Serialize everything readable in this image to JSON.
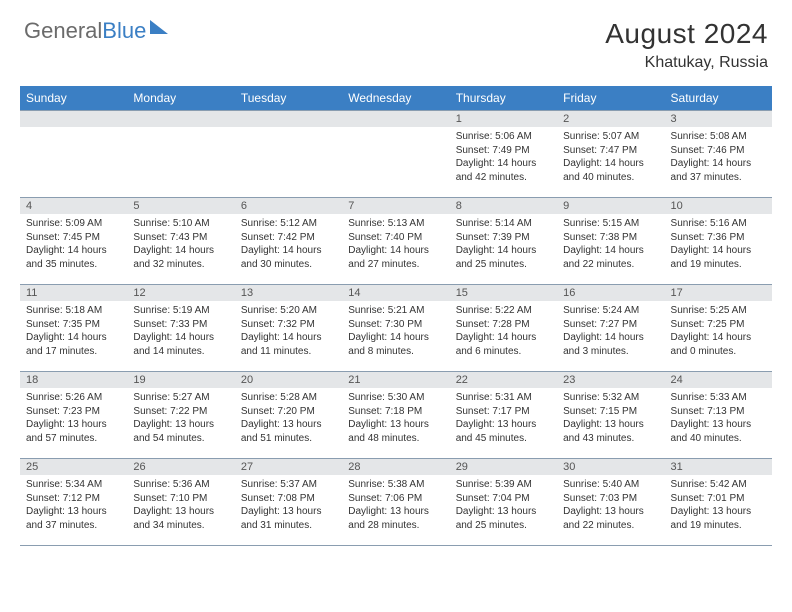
{
  "logo": {
    "text1": "General",
    "text2": "Blue"
  },
  "title": "August 2024",
  "location": "Khatukay, Russia",
  "colors": {
    "header_bg": "#3b7fc4",
    "header_text": "#ffffff",
    "daynum_bg": "#e4e6e8",
    "border": "#8a9db0",
    "text": "#333333",
    "logo_gray": "#6b6b6b"
  },
  "dayNames": [
    "Sunday",
    "Monday",
    "Tuesday",
    "Wednesday",
    "Thursday",
    "Friday",
    "Saturday"
  ],
  "weeks": [
    [
      {
        "n": "",
        "sr": "",
        "ss": "",
        "dl": ""
      },
      {
        "n": "",
        "sr": "",
        "ss": "",
        "dl": ""
      },
      {
        "n": "",
        "sr": "",
        "ss": "",
        "dl": ""
      },
      {
        "n": "",
        "sr": "",
        "ss": "",
        "dl": ""
      },
      {
        "n": "1",
        "sr": "Sunrise: 5:06 AM",
        "ss": "Sunset: 7:49 PM",
        "dl": "Daylight: 14 hours and 42 minutes."
      },
      {
        "n": "2",
        "sr": "Sunrise: 5:07 AM",
        "ss": "Sunset: 7:47 PM",
        "dl": "Daylight: 14 hours and 40 minutes."
      },
      {
        "n": "3",
        "sr": "Sunrise: 5:08 AM",
        "ss": "Sunset: 7:46 PM",
        "dl": "Daylight: 14 hours and 37 minutes."
      }
    ],
    [
      {
        "n": "4",
        "sr": "Sunrise: 5:09 AM",
        "ss": "Sunset: 7:45 PM",
        "dl": "Daylight: 14 hours and 35 minutes."
      },
      {
        "n": "5",
        "sr": "Sunrise: 5:10 AM",
        "ss": "Sunset: 7:43 PM",
        "dl": "Daylight: 14 hours and 32 minutes."
      },
      {
        "n": "6",
        "sr": "Sunrise: 5:12 AM",
        "ss": "Sunset: 7:42 PM",
        "dl": "Daylight: 14 hours and 30 minutes."
      },
      {
        "n": "7",
        "sr": "Sunrise: 5:13 AM",
        "ss": "Sunset: 7:40 PM",
        "dl": "Daylight: 14 hours and 27 minutes."
      },
      {
        "n": "8",
        "sr": "Sunrise: 5:14 AM",
        "ss": "Sunset: 7:39 PM",
        "dl": "Daylight: 14 hours and 25 minutes."
      },
      {
        "n": "9",
        "sr": "Sunrise: 5:15 AM",
        "ss": "Sunset: 7:38 PM",
        "dl": "Daylight: 14 hours and 22 minutes."
      },
      {
        "n": "10",
        "sr": "Sunrise: 5:16 AM",
        "ss": "Sunset: 7:36 PM",
        "dl": "Daylight: 14 hours and 19 minutes."
      }
    ],
    [
      {
        "n": "11",
        "sr": "Sunrise: 5:18 AM",
        "ss": "Sunset: 7:35 PM",
        "dl": "Daylight: 14 hours and 17 minutes."
      },
      {
        "n": "12",
        "sr": "Sunrise: 5:19 AM",
        "ss": "Sunset: 7:33 PM",
        "dl": "Daylight: 14 hours and 14 minutes."
      },
      {
        "n": "13",
        "sr": "Sunrise: 5:20 AM",
        "ss": "Sunset: 7:32 PM",
        "dl": "Daylight: 14 hours and 11 minutes."
      },
      {
        "n": "14",
        "sr": "Sunrise: 5:21 AM",
        "ss": "Sunset: 7:30 PM",
        "dl": "Daylight: 14 hours and 8 minutes."
      },
      {
        "n": "15",
        "sr": "Sunrise: 5:22 AM",
        "ss": "Sunset: 7:28 PM",
        "dl": "Daylight: 14 hours and 6 minutes."
      },
      {
        "n": "16",
        "sr": "Sunrise: 5:24 AM",
        "ss": "Sunset: 7:27 PM",
        "dl": "Daylight: 14 hours and 3 minutes."
      },
      {
        "n": "17",
        "sr": "Sunrise: 5:25 AM",
        "ss": "Sunset: 7:25 PM",
        "dl": "Daylight: 14 hours and 0 minutes."
      }
    ],
    [
      {
        "n": "18",
        "sr": "Sunrise: 5:26 AM",
        "ss": "Sunset: 7:23 PM",
        "dl": "Daylight: 13 hours and 57 minutes."
      },
      {
        "n": "19",
        "sr": "Sunrise: 5:27 AM",
        "ss": "Sunset: 7:22 PM",
        "dl": "Daylight: 13 hours and 54 minutes."
      },
      {
        "n": "20",
        "sr": "Sunrise: 5:28 AM",
        "ss": "Sunset: 7:20 PM",
        "dl": "Daylight: 13 hours and 51 minutes."
      },
      {
        "n": "21",
        "sr": "Sunrise: 5:30 AM",
        "ss": "Sunset: 7:18 PM",
        "dl": "Daylight: 13 hours and 48 minutes."
      },
      {
        "n": "22",
        "sr": "Sunrise: 5:31 AM",
        "ss": "Sunset: 7:17 PM",
        "dl": "Daylight: 13 hours and 45 minutes."
      },
      {
        "n": "23",
        "sr": "Sunrise: 5:32 AM",
        "ss": "Sunset: 7:15 PM",
        "dl": "Daylight: 13 hours and 43 minutes."
      },
      {
        "n": "24",
        "sr": "Sunrise: 5:33 AM",
        "ss": "Sunset: 7:13 PM",
        "dl": "Daylight: 13 hours and 40 minutes."
      }
    ],
    [
      {
        "n": "25",
        "sr": "Sunrise: 5:34 AM",
        "ss": "Sunset: 7:12 PM",
        "dl": "Daylight: 13 hours and 37 minutes."
      },
      {
        "n": "26",
        "sr": "Sunrise: 5:36 AM",
        "ss": "Sunset: 7:10 PM",
        "dl": "Daylight: 13 hours and 34 minutes."
      },
      {
        "n": "27",
        "sr": "Sunrise: 5:37 AM",
        "ss": "Sunset: 7:08 PM",
        "dl": "Daylight: 13 hours and 31 minutes."
      },
      {
        "n": "28",
        "sr": "Sunrise: 5:38 AM",
        "ss": "Sunset: 7:06 PM",
        "dl": "Daylight: 13 hours and 28 minutes."
      },
      {
        "n": "29",
        "sr": "Sunrise: 5:39 AM",
        "ss": "Sunset: 7:04 PM",
        "dl": "Daylight: 13 hours and 25 minutes."
      },
      {
        "n": "30",
        "sr": "Sunrise: 5:40 AM",
        "ss": "Sunset: 7:03 PM",
        "dl": "Daylight: 13 hours and 22 minutes."
      },
      {
        "n": "31",
        "sr": "Sunrise: 5:42 AM",
        "ss": "Sunset: 7:01 PM",
        "dl": "Daylight: 13 hours and 19 minutes."
      }
    ]
  ]
}
